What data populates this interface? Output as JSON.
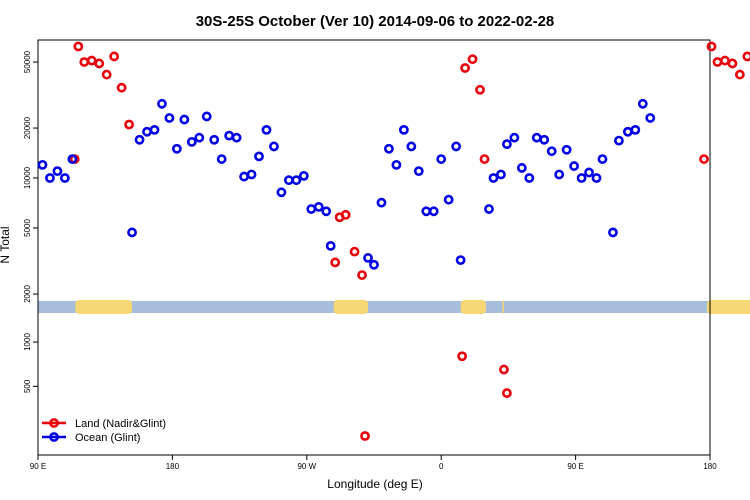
{
  "chart_data": {
    "type": "scatter",
    "title": "30S-25S October (Ver 10)   2014-09-06 to 2022-02-28",
    "xlabel": "Longitude (deg E)",
    "ylabel": "N Total",
    "x_ticks": [
      {
        "value": 90,
        "label": "90 E"
      },
      {
        "value": 180,
        "label": "180"
      },
      {
        "value": 270,
        "label": "90 W"
      },
      {
        "value": 360,
        "label": "0"
      },
      {
        "value": 450,
        "label": "90 E"
      },
      {
        "value": 540,
        "label": "180"
      }
    ],
    "xlim": [
      90,
      540
    ],
    "upper_panel": {
      "y_scale": "log",
      "ylim": [
        1800,
        80000
      ],
      "y_ticks": [
        2000,
        5000,
        10000,
        20000,
        50000
      ]
    },
    "lower_panel": {
      "y_scale": "log",
      "ylim": [
        200,
        1500
      ],
      "y_ticks": [
        500,
        1000
      ]
    },
    "band": {
      "base_color": "#a6bddb",
      "land_color": "#f7d774",
      "land_segments": [
        [
          115,
          153
        ],
        [
          288,
          311
        ],
        [
          373,
          390
        ],
        [
          401,
          402
        ],
        [
          538,
          577
        ]
      ]
    },
    "series": [
      {
        "name": "Land (Nadir&Glint)",
        "color": "#e8000b",
        "points": [
          [
            114.6,
            13000
          ],
          [
            117,
            62000
          ],
          [
            121,
            50000
          ],
          [
            126,
            51000
          ],
          [
            131,
            49000
          ],
          [
            136,
            42000
          ],
          [
            141,
            54000
          ],
          [
            146,
            35000
          ],
          [
            151,
            21000
          ],
          [
            289,
            3100
          ],
          [
            292,
            5800
          ],
          [
            296,
            6000
          ],
          [
            302,
            3600
          ],
          [
            307,
            2600
          ],
          [
            309,
            230
          ],
          [
            374,
            800
          ],
          [
            376,
            46000
          ],
          [
            381,
            52000
          ],
          [
            386,
            34000
          ],
          [
            389,
            13000
          ],
          [
            402,
            650
          ],
          [
            404,
            450
          ],
          [
            536,
            13000
          ],
          [
            541,
            62000
          ],
          [
            545,
            50000
          ],
          [
            550,
            51000
          ],
          [
            555,
            49000
          ],
          [
            560,
            42000
          ],
          [
            565,
            54000
          ],
          [
            570,
            35000
          ],
          [
            575,
            21000
          ]
        ]
      },
      {
        "name": "Ocean (Glint)",
        "color": "#0000e6",
        "points": [
          [
            93,
            12000
          ],
          [
            98,
            10000
          ],
          [
            103,
            11000
          ],
          [
            108,
            10000
          ],
          [
            113,
            13000
          ],
          [
            153,
            4700
          ],
          [
            158,
            17000
          ],
          [
            163,
            19000
          ],
          [
            168,
            19500
          ],
          [
            173,
            28000
          ],
          [
            178,
            23000
          ],
          [
            183,
            15000
          ],
          [
            188,
            22500
          ],
          [
            193,
            16500
          ],
          [
            198,
            17500
          ],
          [
            203,
            23500
          ],
          [
            208,
            17000
          ],
          [
            213,
            13000
          ],
          [
            218,
            18000
          ],
          [
            223,
            17500
          ],
          [
            228,
            10200
          ],
          [
            233,
            10500
          ],
          [
            238,
            13500
          ],
          [
            243,
            19500
          ],
          [
            248,
            15500
          ],
          [
            253,
            8200
          ],
          [
            258,
            9700
          ],
          [
            263,
            9700
          ],
          [
            268,
            10300
          ],
          [
            273,
            6500
          ],
          [
            278,
            6700
          ],
          [
            283,
            6300
          ],
          [
            286,
            3900
          ],
          [
            311,
            3300
          ],
          [
            315,
            3000
          ],
          [
            320,
            7100
          ],
          [
            325,
            15000
          ],
          [
            330,
            12000
          ],
          [
            335,
            19500
          ],
          [
            340,
            15500
          ],
          [
            345,
            11000
          ],
          [
            350,
            6300
          ],
          [
            355,
            6300
          ],
          [
            360,
            13000
          ],
          [
            365,
            7400
          ],
          [
            370,
            15500
          ],
          [
            373,
            3200
          ],
          [
            392,
            6500
          ],
          [
            395,
            10000
          ],
          [
            400,
            10500
          ],
          [
            404,
            16000
          ],
          [
            409,
            17500
          ],
          [
            414,
            11500
          ],
          [
            419,
            10000
          ],
          [
            424,
            17500
          ],
          [
            429,
            17000
          ],
          [
            434,
            14500
          ],
          [
            439,
            10500
          ],
          [
            444,
            14800
          ],
          [
            449,
            11800
          ],
          [
            454,
            10000
          ],
          [
            459,
            10800
          ],
          [
            464,
            10000
          ],
          [
            468,
            13000
          ],
          [
            475,
            4700
          ],
          [
            479,
            16800
          ],
          [
            485,
            19000
          ],
          [
            490,
            19500
          ],
          [
            495,
            28000
          ],
          [
            500,
            23000
          ]
        ]
      }
    ],
    "legend": {
      "placement": "bottom-left",
      "items": [
        "Land (Nadir&Glint)",
        "Ocean (Glint)"
      ]
    }
  }
}
